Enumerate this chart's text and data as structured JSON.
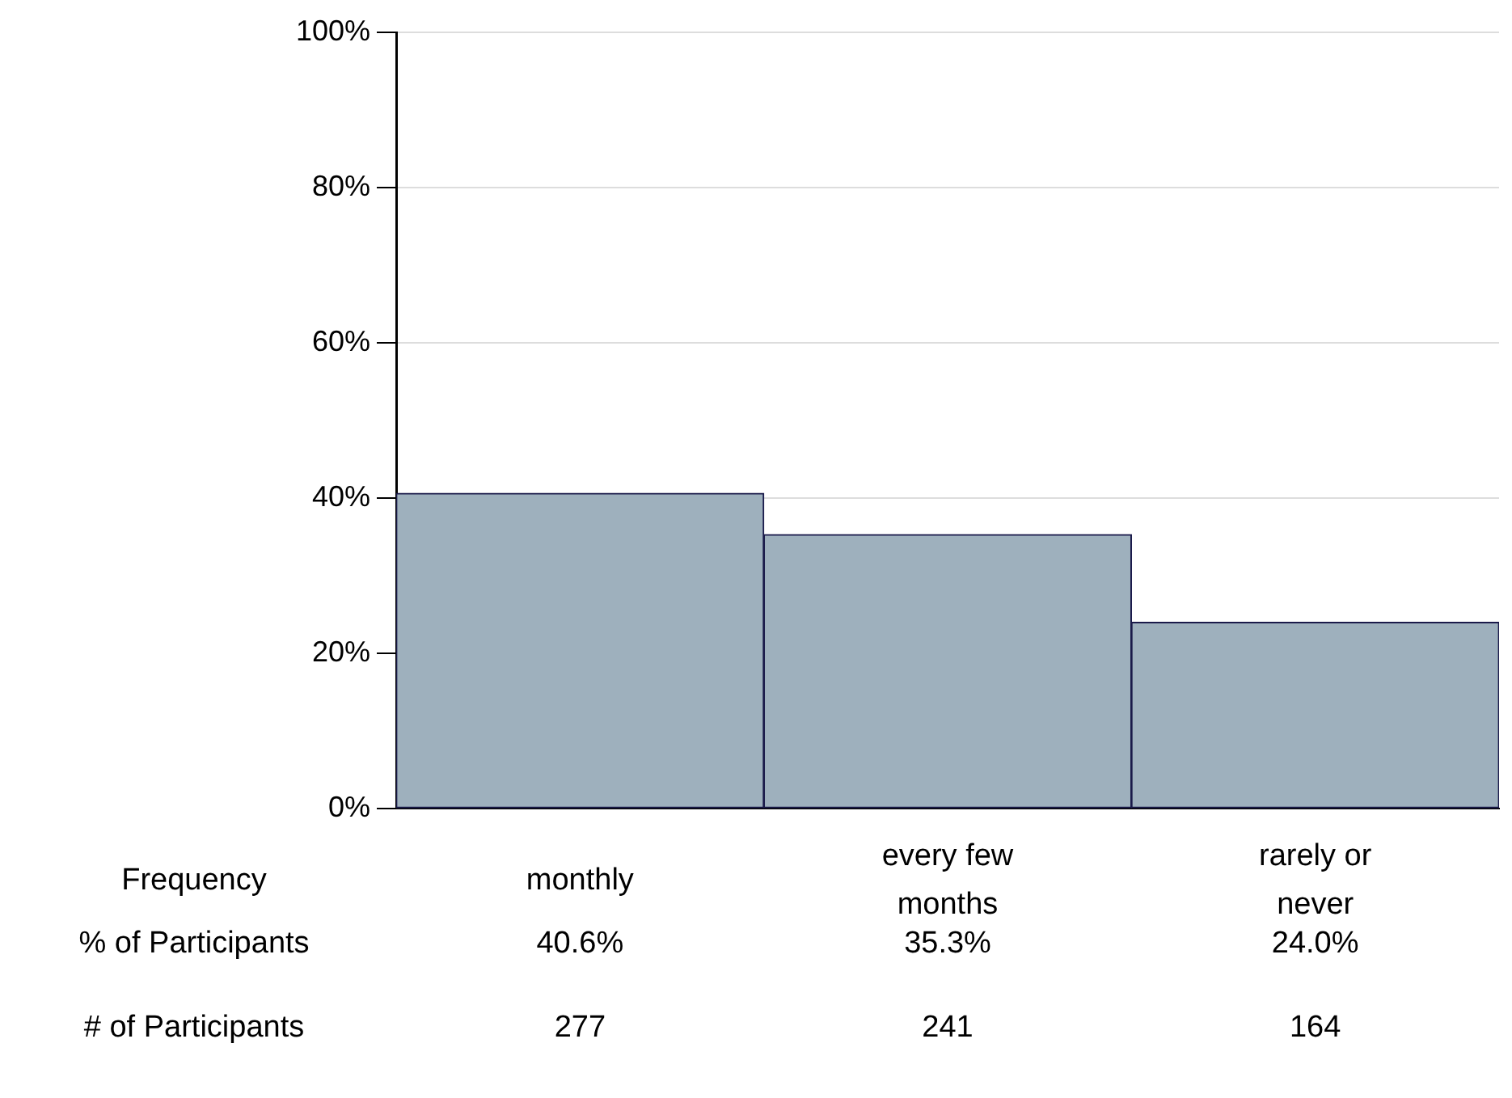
{
  "chart_data": {
    "type": "bar",
    "xlabel": "Frequency",
    "categories": [
      "monthly",
      "every few months",
      "rarely or never"
    ],
    "values": [
      40.6,
      35.3,
      24.0
    ],
    "value_labels": [
      "40.6%",
      "35.3%",
      "24.0%"
    ],
    "color": "#9eb0bd",
    "ylim": [
      0,
      100
    ],
    "yticks": [
      {
        "value": 0,
        "label": "0%"
      },
      {
        "value": 20,
        "label": "20%"
      },
      {
        "value": 40,
        "label": "40%"
      },
      {
        "value": 60,
        "label": "60%"
      },
      {
        "value": 80,
        "label": "80%"
      },
      {
        "value": 100,
        "label": "100%"
      }
    ],
    "grid": "y",
    "legend": false,
    "annotations": [
      "% of Participants",
      "# of Participants",
      "277",
      "241",
      "164"
    ]
  }
}
